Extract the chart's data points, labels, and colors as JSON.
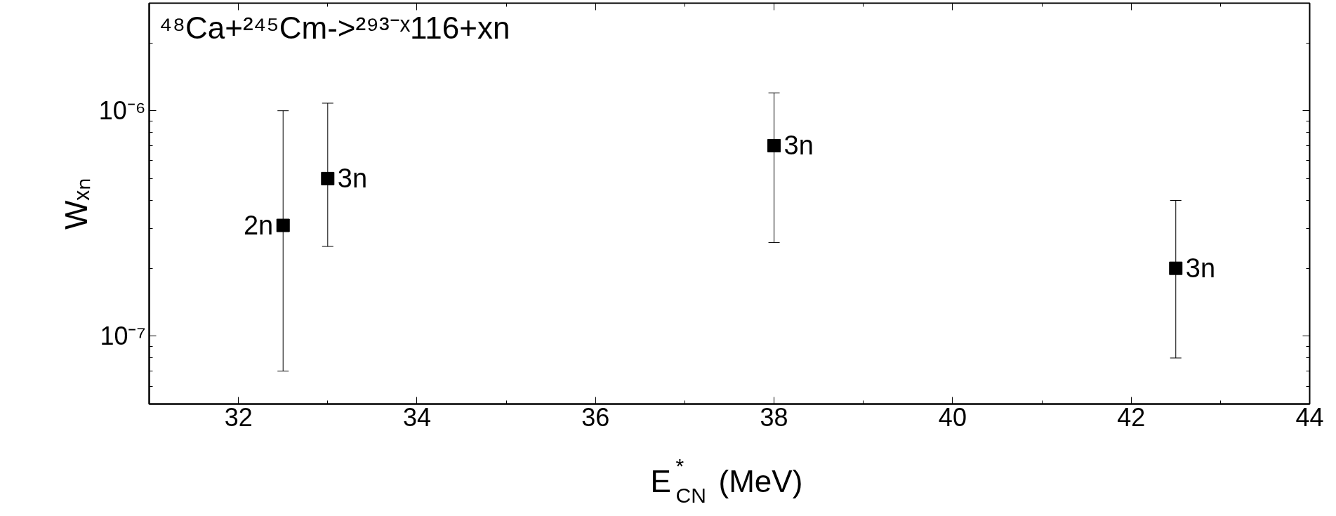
{
  "chart_data": {
    "type": "scatter",
    "xlabel": "E$^{*}$$_{CN}$ (MeV)",
    "ylabel": "Wₓₙ",
    "x": [
      32.5,
      33,
      38,
      42.5
    ],
    "values": [
      3.1e-07,
      5e-07,
      7e-07,
      2e-07
    ],
    "errors": [
      [
        7e-08,
        1e-06
      ],
      [
        2.5e-07,
        1.08e-06
      ],
      [
        2.6e-07,
        1.2e-06
      ],
      [
        8e-08,
        4e-07
      ]
    ],
    "color": "#000000",
    "marker": "square",
    "log": "y",
    "grid": false,
    "xlim": [
      31,
      44
    ],
    "xticks": [
      32,
      34,
      36,
      38,
      40,
      42,
      44
    ],
    "ylim": [
      5e-08,
      3e-06
    ],
    "yticks": [
      {
        "value": 1e-07,
        "label": "10⁻⁷"
      },
      {
        "value": 1e-06,
        "label": "10⁻⁶"
      }
    ],
    "annotations": [
      "⁴⁸Ca+²⁴⁵Cm->²⁹³⁻ˣ116+xn",
      {
        "text": "2n",
        "x": 32.5,
        "y": 3.1e-07
      },
      {
        "text": "3n",
        "x": 33,
        "y": 5e-07
      },
      {
        "text": "3n",
        "x": 38,
        "y": 7e-07
      },
      {
        "text": "3n",
        "x": 42.5,
        "y": 2e-07
      }
    ]
  }
}
